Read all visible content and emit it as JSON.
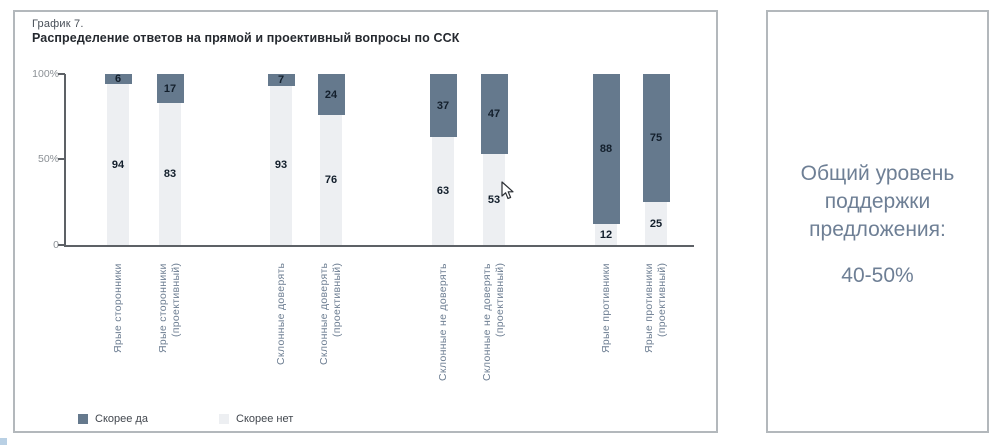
{
  "figure": {
    "label": "График 7.",
    "title": "Распределение ответов на прямой и проективный вопросы по ССК"
  },
  "chart_data": {
    "type": "bar",
    "stacked": true,
    "orientation": "vertical",
    "unit": "percent",
    "categories": [
      "Ярые сторонники",
      "Ярые сторонники\n(проективный)",
      "Склонные доверять",
      "Склонные доверять\n(проективный)",
      "Склонные не доверять",
      "Склонные не доверять\n(проективный)",
      "Ярые противники",
      "Ярые противники\n(проективный)"
    ],
    "series": [
      {
        "name": "Скорее да",
        "color": "#65798d",
        "values": [
          6,
          17,
          7,
          24,
          37,
          47,
          88,
          75
        ]
      },
      {
        "name": "Скорее нет",
        "color": "#edeff2",
        "values": [
          94,
          83,
          93,
          76,
          63,
          53,
          12,
          25
        ]
      }
    ],
    "y_axis": {
      "min": 0,
      "max": 100,
      "ticks": [
        "100%",
        "50%",
        "0"
      ]
    },
    "grid": false,
    "legend_position": "bottom",
    "value_labels": "inside-segment"
  },
  "side_panel": {
    "text": "Общий уровень\nподдержки\nпредложения:",
    "value": "40-50%"
  },
  "icons": {
    "cursor": "mouse-pointer-arrow"
  },
  "colors": {
    "series_yes": "#65798d",
    "series_no": "#edeff2",
    "panel_border": "#b3b8bc",
    "axis": "#5d6166",
    "category_text": "#6d7e92",
    "side_text": "#6e7f95",
    "corner_artifact": "#b9d0e4"
  }
}
